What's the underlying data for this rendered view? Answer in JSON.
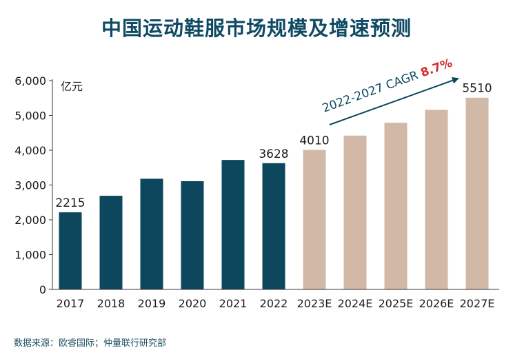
{
  "page": {
    "title": "中国运动鞋服市场规模及增速预测",
    "source": "数据来源：欧睿国际；仲量联行研究部"
  },
  "chart_data": {
    "type": "bar",
    "title": "中国运动鞋服市场规模及增速预测",
    "ylabel": "亿元",
    "xlabel": "",
    "ylim": [
      0,
      6000
    ],
    "yticks": [
      "0",
      "1,000",
      "2,000",
      "3,000",
      "4,000",
      "5,000",
      "6,000"
    ],
    "categories": [
      "2017",
      "2018",
      "2019",
      "2020",
      "2021",
      "2022",
      "2023E",
      "2024E",
      "2025E",
      "2026E",
      "2027E"
    ],
    "values": [
      2215,
      2690,
      3180,
      3110,
      3720,
      3628,
      4010,
      4420,
      4790,
      5160,
      5510
    ],
    "bar_kind": [
      "actual",
      "actual",
      "actual",
      "actual",
      "actual",
      "actual",
      "forecast",
      "forecast",
      "forecast",
      "forecast",
      "forecast"
    ],
    "data_labels": [
      "2215",
      "",
      "",
      "",
      "",
      "3628",
      "4010",
      "",
      "",
      "",
      "5510"
    ],
    "annotation": {
      "text": "2022-2027 CAGR",
      "value": "8.7%"
    },
    "colors": {
      "actual": "#0c475e",
      "forecast": "#d2b8a6",
      "axis": "#333333",
      "highlight": "#d32b2b"
    },
    "grid": false,
    "legend": "none"
  }
}
